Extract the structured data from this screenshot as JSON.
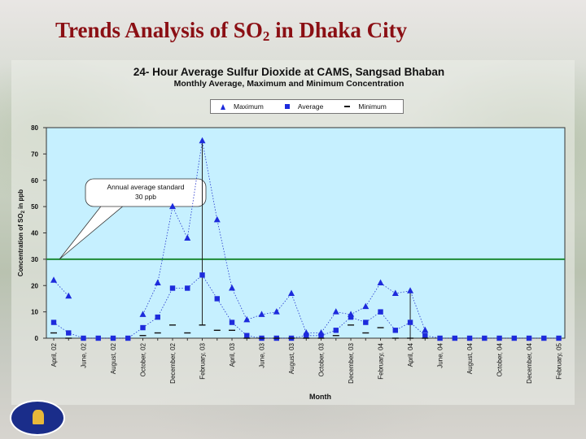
{
  "slide": {
    "title_main": "Trends Analysis of SO",
    "title_sub": "2",
    "title_rest": " in Dhaka City"
  },
  "chart_data": {
    "type": "scatter",
    "title": "24- Hour Average Sulfur Dioxide at CAMS, Sangsad Bhaban",
    "subtitle": "Monthly Average, Maximum and Minimum Concentration",
    "xlabel": "Month",
    "ylabel_prefix": "Concentration of SO",
    "ylabel_sub": "2",
    "ylabel_suffix": " in ppb",
    "ylim": [
      0,
      80
    ],
    "yticks": [
      0,
      10,
      20,
      30,
      40,
      50,
      60,
      70,
      80
    ],
    "grid": false,
    "legend_position": "top",
    "categories": [
      "Apr-02",
      "May-02",
      "Jun-02",
      "Jul-02",
      "Aug-02",
      "Sep-02",
      "Oct-02",
      "Nov-02",
      "Dec-02",
      "Jan-03",
      "Feb-03",
      "Mar-03",
      "Apr-03",
      "May-03",
      "Jun-03",
      "Jul-03",
      "Aug-03",
      "Sep-03",
      "Oct-03",
      "Nov-03",
      "Dec-03",
      "Jan-04",
      "Feb-04",
      "Mar-04",
      "Apr-04",
      "May-04",
      "Jun-04",
      "Jul-04",
      "Aug-04",
      "Sep-04",
      "Oct-04",
      "Nov-04",
      "Dec-04",
      "Jan-05",
      "Feb-05"
    ],
    "tick_labels": [
      "April, 02",
      "June, 02",
      "August, 02",
      "October, 02",
      "December, 02",
      "February, 03",
      "April, 03",
      "June, 03",
      "August, 03",
      "October, 03",
      "December, 03",
      "February, 04",
      "April, 04",
      "June, 04",
      "August, 04",
      "October, 04",
      "December, 04",
      "February, 05"
    ],
    "series": [
      {
        "name": "Maximum",
        "marker": "triangle",
        "values": [
          22,
          16,
          null,
          null,
          null,
          null,
          9,
          21,
          50,
          38,
          75,
          45,
          19,
          7,
          9,
          10,
          17,
          2,
          2,
          10,
          9,
          12,
          21,
          17,
          18,
          3,
          null,
          null,
          null,
          null,
          null,
          null,
          null,
          null,
          null
        ]
      },
      {
        "name": "Average",
        "marker": "square",
        "values": [
          6,
          2,
          0,
          0,
          0,
          0,
          4,
          8,
          19,
          19,
          24,
          15,
          6,
          1,
          0,
          0,
          0,
          1,
          1,
          3,
          8,
          6,
          10,
          3,
          6,
          1,
          0,
          0,
          0,
          0,
          0,
          0,
          0,
          0,
          0
        ]
      },
      {
        "name": "Minimum",
        "marker": "dash",
        "values": [
          2,
          0,
          null,
          null,
          null,
          null,
          1,
          2,
          5,
          2,
          5,
          3,
          3,
          0,
          0,
          0,
          0,
          0,
          0,
          1,
          5,
          2,
          4,
          0,
          0,
          0,
          null,
          null,
          null,
          null,
          null,
          null,
          null,
          null,
          null
        ]
      }
    ],
    "standard": {
      "value": 30,
      "annotation_line1": "Annual average standard",
      "annotation_line2": "30 ppb"
    },
    "colors": {
      "plot_bg": "#c6f0ff",
      "marker": "#1d2bdc",
      "standard_line": "#1e8a35",
      "connector": "#2233cc"
    }
  }
}
